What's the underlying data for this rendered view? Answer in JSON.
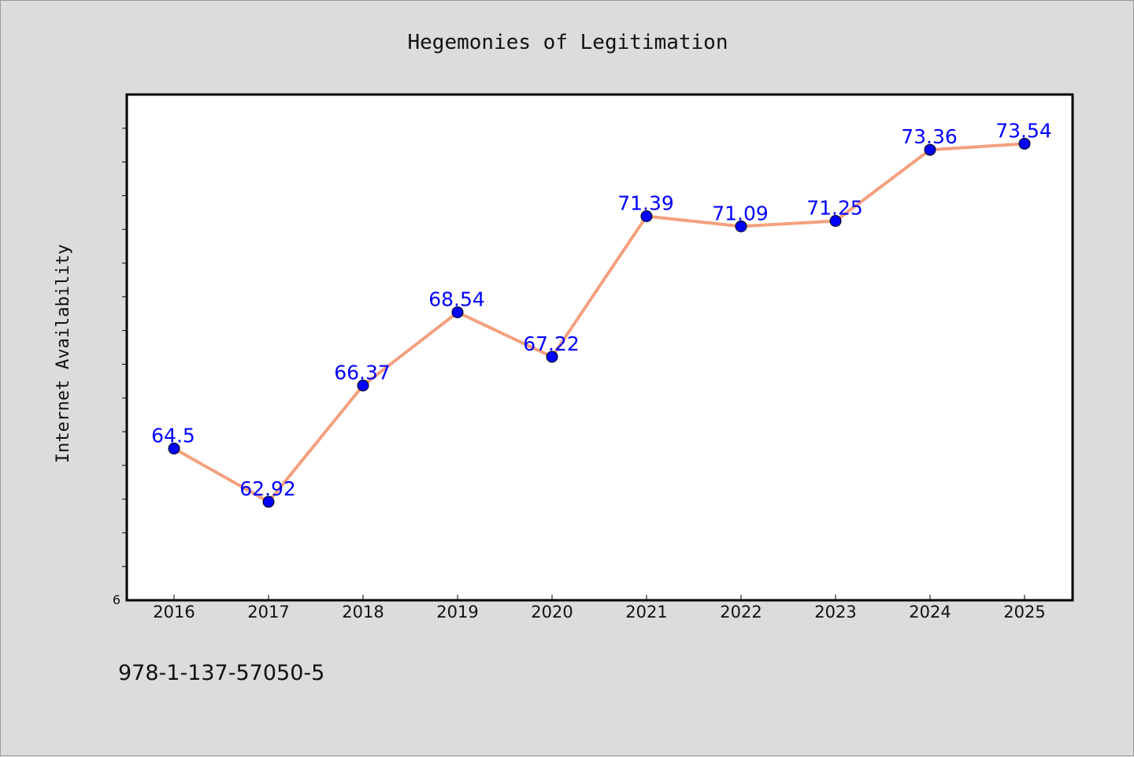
{
  "chart_data": {
    "type": "line",
    "title": "Hegemonies of Legitimation",
    "xlabel": "",
    "ylabel": "Internet Availability",
    "categories": [
      "2016",
      "2017",
      "2018",
      "2019",
      "2020",
      "2021",
      "2022",
      "2023",
      "2024",
      "2025"
    ],
    "series": [
      {
        "values": [
          64.5,
          62.92,
          66.37,
          68.54,
          67.22,
          71.39,
          71.09,
          71.25,
          73.36,
          73.54
        ],
        "data_labels": [
          "64.5",
          "62.92",
          "66.37",
          "68.54",
          "67.22",
          "71.39",
          "71.09",
          "71.25",
          "73.36",
          "73.54"
        ],
        "line_color": "#f4a07e",
        "marker_color": "#0000ff",
        "label_color": "#0000ff"
      }
    ],
    "ylim": [
      60,
      75
    ],
    "y_tick_label": "6",
    "grid": false,
    "legend": "none"
  },
  "footer": {
    "isbn": "978-1-137-57050-5"
  },
  "colors": {
    "background": "#dcdcdc",
    "plot_background": "#ffffff",
    "axis": "#000000"
  }
}
